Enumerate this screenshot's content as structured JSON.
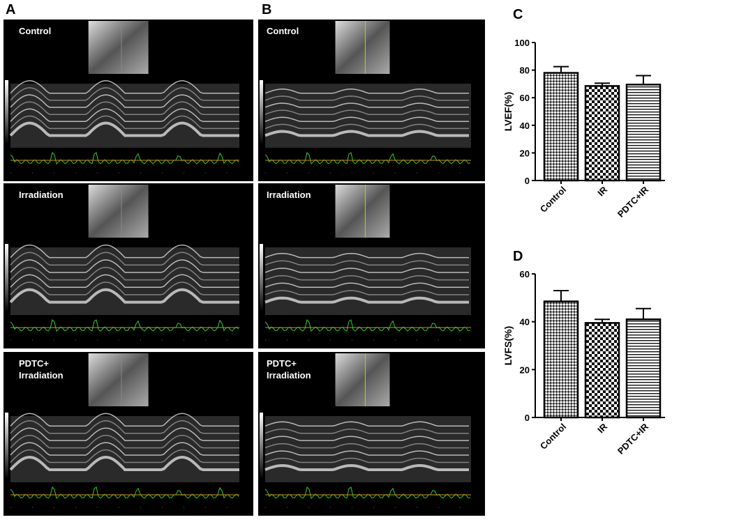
{
  "panels": {
    "A": {
      "letter": "A",
      "labels": [
        "Control",
        "Irradiation",
        "PDTC+ Irradiation"
      ]
    },
    "B": {
      "letter": "B",
      "labels": [
        "Control",
        "Irradiation",
        "PDTC+ Irradiation"
      ]
    }
  },
  "chart_data": [
    {
      "type": "bar",
      "letter": "C",
      "ylabel": "LVEF(%)",
      "categories": [
        "Control",
        "IR",
        "PDTC+IR"
      ],
      "values": [
        78,
        68.5,
        69.5
      ],
      "errors": [
        4.5,
        2,
        6.5
      ],
      "patterns": [
        "fine-checker",
        "checker",
        "hlines"
      ],
      "ylim": [
        0,
        100
      ],
      "yticks": [
        0,
        20,
        40,
        60,
        80,
        100
      ]
    },
    {
      "type": "bar",
      "letter": "D",
      "ylabel": "LVFS(%)",
      "categories": [
        "Control",
        "IR",
        "PDTC+IR"
      ],
      "values": [
        48.5,
        39.5,
        41
      ],
      "errors": [
        4.5,
        1.5,
        4.5
      ],
      "patterns": [
        "fine-checker",
        "checker",
        "hlines"
      ],
      "ylim": [
        0,
        60
      ],
      "yticks": [
        0,
        20,
        40,
        60
      ]
    }
  ]
}
